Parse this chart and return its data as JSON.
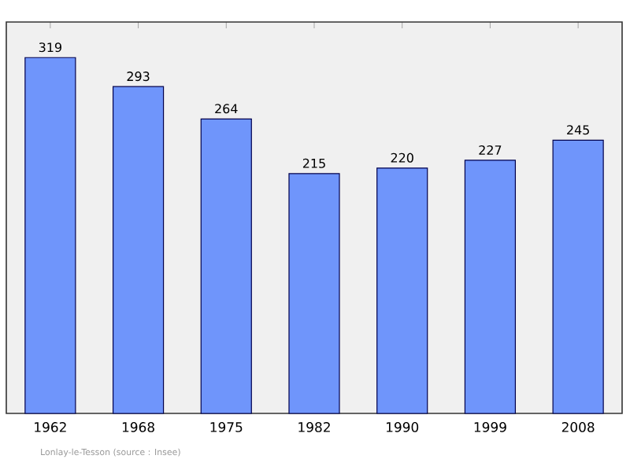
{
  "chart_data": {
    "type": "bar",
    "categories": [
      "1962",
      "1968",
      "1975",
      "1982",
      "1990",
      "1999",
      "2008"
    ],
    "values": [
      319,
      293,
      264,
      215,
      220,
      227,
      245
    ],
    "color": "#6f95fb",
    "data_labels": true,
    "annotations": [
      "Lonlay-le-Tesson    (source : Insee)"
    ]
  }
}
